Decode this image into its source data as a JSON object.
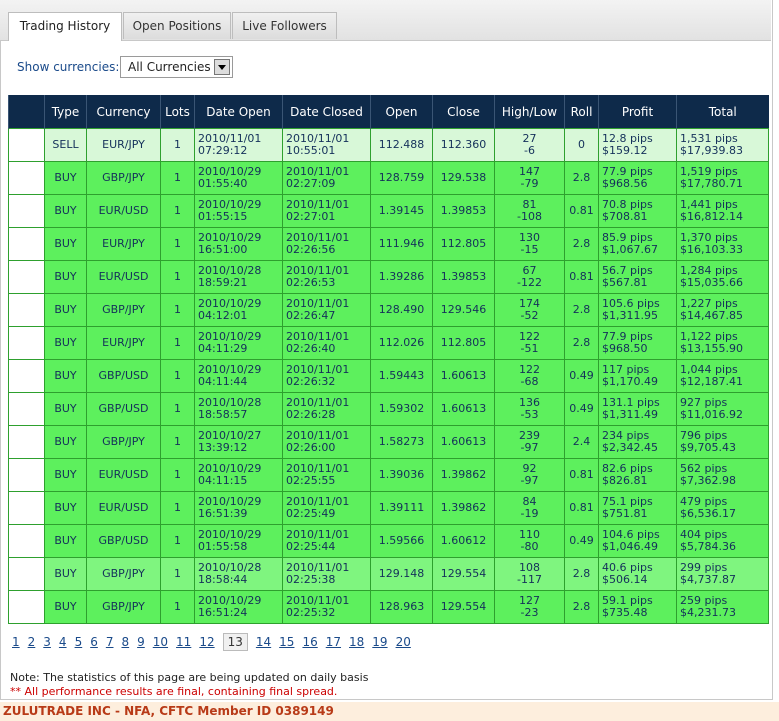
{
  "tabs": [
    {
      "label": "Trading History"
    },
    {
      "label": "Open Positions"
    },
    {
      "label": "Live Followers"
    }
  ],
  "filter": {
    "label": "Show currencies:",
    "value": "All Currencies"
  },
  "columns": [
    "Type",
    "Currency",
    "Lots",
    "Date Open",
    "Date Closed",
    "Open",
    "Close",
    "High/Low",
    "Roll",
    "Profit",
    "Total"
  ],
  "rows": [
    {
      "type": "SELL",
      "currency": "EUR/JPY",
      "lots": "1",
      "open_date": "2010/11/01",
      "open_time": "07:29:12",
      "close_date": "2010/11/01",
      "close_time": "10:55:01",
      "open": "112.488",
      "close": "112.360",
      "high": "27",
      "low": "-6",
      "roll": "0",
      "pips": "12.8 pips",
      "profit": "$159.12",
      "total_pips": "1,531 pips",
      "total": "$17,939.83"
    },
    {
      "type": "BUY",
      "currency": "GBP/JPY",
      "lots": "1",
      "open_date": "2010/10/29",
      "open_time": "01:55:40",
      "close_date": "2010/11/01",
      "close_time": "02:27:09",
      "open": "128.759",
      "close": "129.538",
      "high": "147",
      "low": "-79",
      "roll": "2.8",
      "pips": "77.9 pips",
      "profit": "$968.56",
      "total_pips": "1,519 pips",
      "total": "$17,780.71"
    },
    {
      "type": "BUY",
      "currency": "EUR/USD",
      "lots": "1",
      "open_date": "2010/10/29",
      "open_time": "01:55:15",
      "close_date": "2010/11/01",
      "close_time": "02:27:01",
      "open": "1.39145",
      "close": "1.39853",
      "high": "81",
      "low": "-108",
      "roll": "0.81",
      "pips": "70.8 pips",
      "profit": "$708.81",
      "total_pips": "1,441 pips",
      "total": "$16,812.14"
    },
    {
      "type": "BUY",
      "currency": "EUR/JPY",
      "lots": "1",
      "open_date": "2010/10/29",
      "open_time": "16:51:00",
      "close_date": "2010/11/01",
      "close_time": "02:26:56",
      "open": "111.946",
      "close": "112.805",
      "high": "130",
      "low": "-15",
      "roll": "2.8",
      "pips": "85.9 pips",
      "profit": "$1,067.67",
      "total_pips": "1,370 pips",
      "total": "$16,103.33"
    },
    {
      "type": "BUY",
      "currency": "EUR/USD",
      "lots": "1",
      "open_date": "2010/10/28",
      "open_time": "18:59:21",
      "close_date": "2010/11/01",
      "close_time": "02:26:53",
      "open": "1.39286",
      "close": "1.39853",
      "high": "67",
      "low": "-122",
      "roll": "0.81",
      "pips": "56.7 pips",
      "profit": "$567.81",
      "total_pips": "1,284 pips",
      "total": "$15,035.66"
    },
    {
      "type": "BUY",
      "currency": "GBP/JPY",
      "lots": "1",
      "open_date": "2010/10/29",
      "open_time": "04:12:01",
      "close_date": "2010/11/01",
      "close_time": "02:26:47",
      "open": "128.490",
      "close": "129.546",
      "high": "174",
      "low": "-52",
      "roll": "2.8",
      "pips": "105.6 pips",
      "profit": "$1,311.95",
      "total_pips": "1,227 pips",
      "total": "$14,467.85"
    },
    {
      "type": "BUY",
      "currency": "EUR/JPY",
      "lots": "1",
      "open_date": "2010/10/29",
      "open_time": "04:11:29",
      "close_date": "2010/11/01",
      "close_time": "02:26:40",
      "open": "112.026",
      "close": "112.805",
      "high": "122",
      "low": "-51",
      "roll": "2.8",
      "pips": "77.9 pips",
      "profit": "$968.50",
      "total_pips": "1,122 pips",
      "total": "$13,155.90"
    },
    {
      "type": "BUY",
      "currency": "GBP/USD",
      "lots": "1",
      "open_date": "2010/10/29",
      "open_time": "04:11:44",
      "close_date": "2010/11/01",
      "close_time": "02:26:32",
      "open": "1.59443",
      "close": "1.60613",
      "high": "122",
      "low": "-68",
      "roll": "0.49",
      "pips": "117 pips",
      "profit": "$1,170.49",
      "total_pips": "1,044 pips",
      "total": "$12,187.41"
    },
    {
      "type": "BUY",
      "currency": "GBP/USD",
      "lots": "1",
      "open_date": "2010/10/28",
      "open_time": "18:58:57",
      "close_date": "2010/11/01",
      "close_time": "02:26:28",
      "open": "1.59302",
      "close": "1.60613",
      "high": "136",
      "low": "-53",
      "roll": "0.49",
      "pips": "131.1 pips",
      "profit": "$1,311.49",
      "total_pips": "927 pips",
      "total": "$11,016.92"
    },
    {
      "type": "BUY",
      "currency": "GBP/JPY",
      "lots": "1",
      "open_date": "2010/10/27",
      "open_time": "13:39:12",
      "close_date": "2010/11/01",
      "close_time": "02:26:00",
      "open": "1.58273",
      "close": "1.60613",
      "high": "239",
      "low": "-97",
      "roll": "2.4",
      "pips": "234 pips",
      "profit": "$2,342.45",
      "total_pips": "796 pips",
      "total": "$9,705.43"
    },
    {
      "type": "BUY",
      "currency": "EUR/USD",
      "lots": "1",
      "open_date": "2010/10/29",
      "open_time": "04:11:15",
      "close_date": "2010/11/01",
      "close_time": "02:25:55",
      "open": "1.39036",
      "close": "1.39862",
      "high": "92",
      "low": "-97",
      "roll": "0.81",
      "pips": "82.6 pips",
      "profit": "$826.81",
      "total_pips": "562 pips",
      "total": "$7,362.98"
    },
    {
      "type": "BUY",
      "currency": "EUR/USD",
      "lots": "1",
      "open_date": "2010/10/29",
      "open_time": "16:51:39",
      "close_date": "2010/11/01",
      "close_time": "02:25:49",
      "open": "1.39111",
      "close": "1.39862",
      "high": "84",
      "low": "-19",
      "roll": "0.81",
      "pips": "75.1 pips",
      "profit": "$751.81",
      "total_pips": "479 pips",
      "total": "$6,536.17"
    },
    {
      "type": "BUY",
      "currency": "GBP/USD",
      "lots": "1",
      "open_date": "2010/10/29",
      "open_time": "01:55:58",
      "close_date": "2010/11/01",
      "close_time": "02:25:44",
      "open": "1.59566",
      "close": "1.60612",
      "high": "110",
      "low": "-80",
      "roll": "0.49",
      "pips": "104.6 pips",
      "profit": "$1,046.49",
      "total_pips": "404 pips",
      "total": "$5,784.36"
    },
    {
      "type": "BUY",
      "currency": "GBP/JPY",
      "lots": "1",
      "open_date": "2010/10/28",
      "open_time": "18:58:44",
      "close_date": "2010/11/01",
      "close_time": "02:25:38",
      "open": "129.148",
      "close": "129.554",
      "high": "108",
      "low": "-117",
      "roll": "2.8",
      "pips": "40.6 pips",
      "profit": "$506.14",
      "total_pips": "299 pips",
      "total": "$4,737.87"
    },
    {
      "type": "BUY",
      "currency": "GBP/JPY",
      "lots": "1",
      "open_date": "2010/10/29",
      "open_time": "16:51:24",
      "close_date": "2010/11/01",
      "close_time": "02:25:32",
      "open": "128.963",
      "close": "129.554",
      "high": "127",
      "low": "-23",
      "roll": "2.8",
      "pips": "59.1 pips",
      "profit": "$735.48",
      "total_pips": "259 pips",
      "total": "$4,231.73"
    }
  ],
  "pagination": {
    "pages": [
      "1",
      "2",
      "3",
      "4",
      "5",
      "6",
      "7",
      "8",
      "9",
      "10",
      "11",
      "12",
      "13",
      "14",
      "15",
      "16",
      "17",
      "18",
      "19",
      "20"
    ],
    "current": "13"
  },
  "note": "Note: The statistics of this page are being updated on daily basis",
  "note2": "** All performance results are final, containing final spread.",
  "footer": "ZULUTRADE INC - NFA, CFTC Member ID 0389149",
  "colors": {
    "header_bg": "#0e2a4a",
    "row_green": "#5df05d",
    "row_light": "#d8f8d8",
    "footer_text": "#b83a17"
  }
}
